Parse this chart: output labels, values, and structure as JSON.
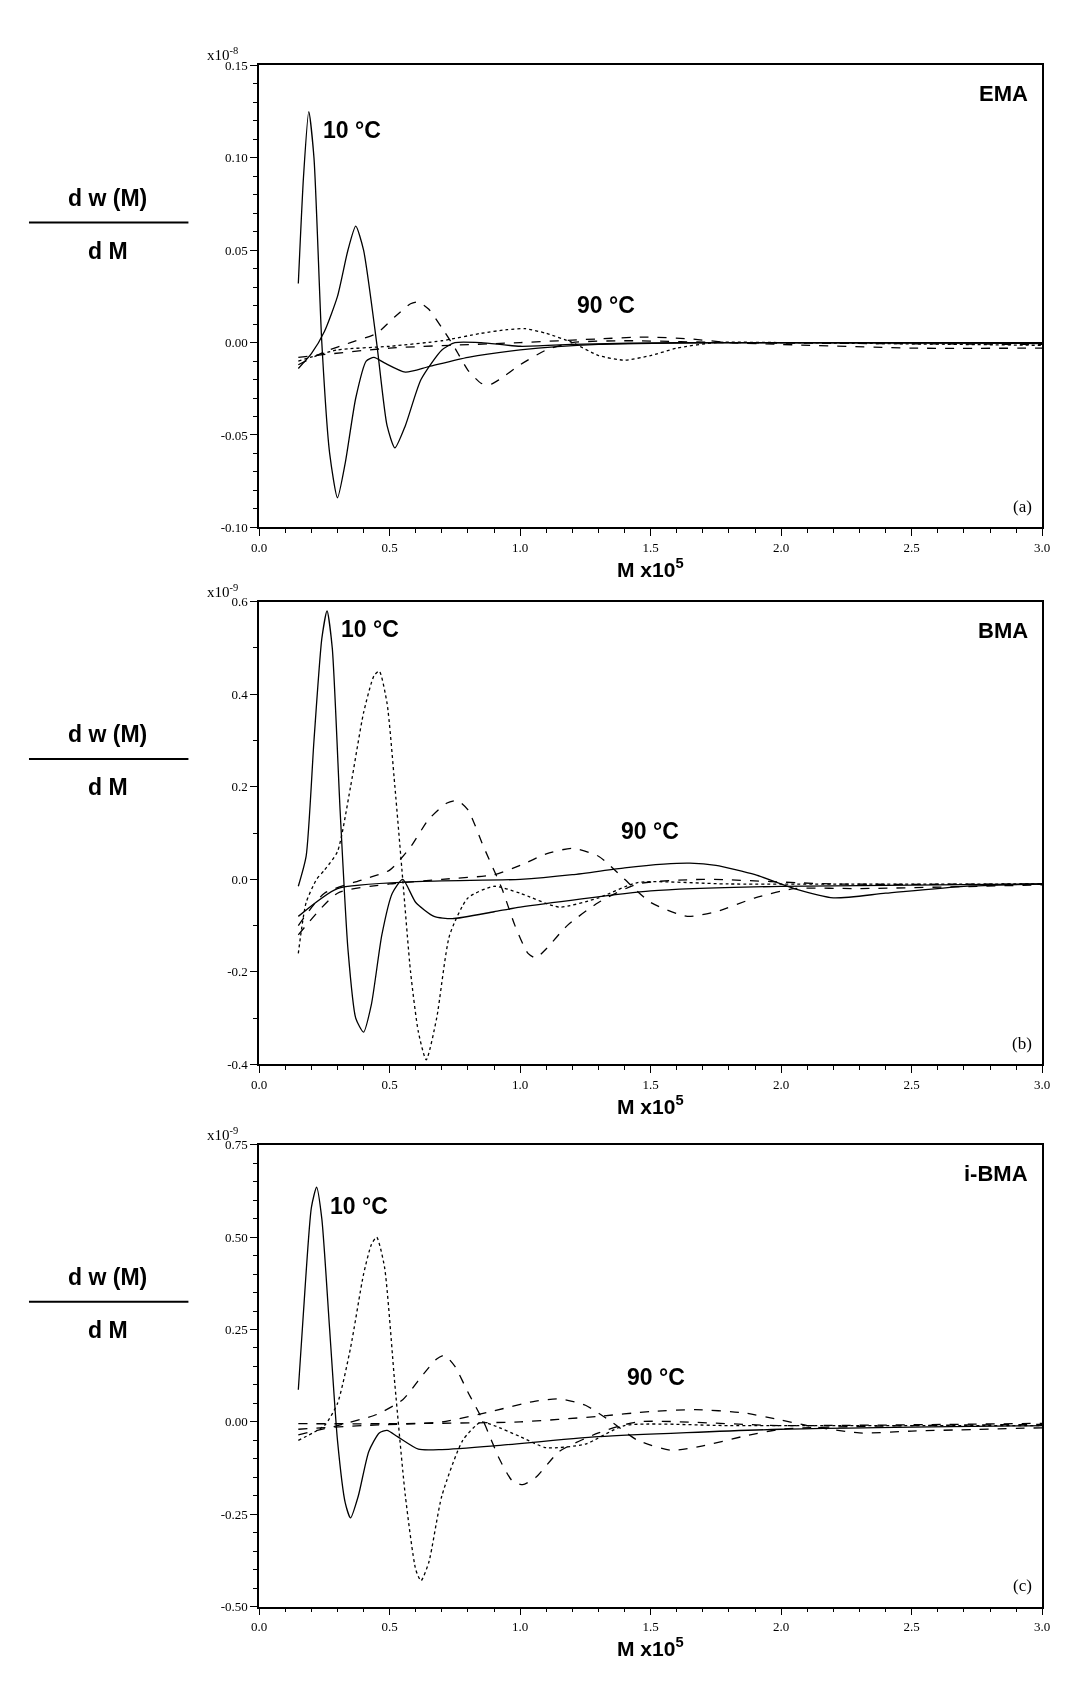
{
  "chart_data": [
    {
      "type": "line",
      "title": "EMA",
      "xlabel": "M x10$^{5}$",
      "ylabel": "d w (M)\nd M",
      "xlim": [
        0,
        3
      ],
      "ylim": [
        -0.1,
        0.15
      ],
      "xticks": [
        {
          "value": 0,
          "label": "0.0"
        },
        {
          "value": 0.5,
          "label": "0.5"
        },
        {
          "value": 1,
          "label": "1.0"
        },
        {
          "value": 1.5,
          "label": "1.5"
        },
        {
          "value": 2,
          "label": "2.0"
        },
        {
          "value": 2.5,
          "label": "2.5"
        },
        {
          "value": 3,
          "label": "3.0"
        }
      ],
      "yticks": [
        {
          "value": -0.1,
          "label": "-0.10"
        },
        {
          "value": -0.05,
          "label": "-0.05"
        },
        {
          "value": 0,
          "label": "0.00"
        },
        {
          "value": 0.05,
          "label": "0.05"
        },
        {
          "value": 0.1,
          "label": "0.10"
        },
        {
          "value": 0.15,
          "label": "0.15"
        }
      ],
      "annotations": [
        "x10$^{-8}$",
        "(a)",
        "10 °C",
        "90 °C"
      ],
      "series": [
        {
          "color": "#000000",
          "line_style": "solid",
          "x": [
            0.15,
            0.17,
            0.19,
            0.21,
            0.24,
            0.27,
            0.3,
            0.33,
            0.37,
            0.41,
            0.44,
            0.48,
            0.56,
            0.65,
            0.8,
            1.0,
            1.3,
            1.8,
            3.0
          ],
          "values": [
            0.032,
            0.09,
            0.125,
            0.1,
            0.0,
            -0.06,
            -0.084,
            -0.065,
            -0.03,
            -0.01,
            -0.008,
            -0.011,
            -0.016,
            -0.013,
            -0.008,
            -0.004,
            -0.001,
            0.0,
            0.0
          ]
        },
        {
          "color": "#000000",
          "line_style": "solid",
          "x": [
            0.15,
            0.2,
            0.25,
            0.3,
            0.34,
            0.37,
            0.4,
            0.45,
            0.49,
            0.52,
            0.56,
            0.62,
            0.7,
            0.75,
            0.85,
            1.0,
            1.2,
            1.6,
            3.0
          ],
          "values": [
            -0.014,
            -0.006,
            0.006,
            0.025,
            0.05,
            0.063,
            0.05,
            0.0,
            -0.045,
            -0.057,
            -0.045,
            -0.02,
            -0.004,
            0.0,
            0.0,
            -0.002,
            -0.001,
            0.0,
            -0.0005
          ]
        },
        {
          "color": "#000000",
          "line_style": "dashed",
          "x": [
            0.15,
            0.25,
            0.35,
            0.45,
            0.52,
            0.58,
            0.61,
            0.65,
            0.7,
            0.75,
            0.8,
            0.85,
            0.88,
            0.92,
            1.0,
            1.1,
            1.2,
            1.4,
            1.8,
            3.0
          ],
          "values": [
            -0.012,
            -0.005,
            0.0,
            0.005,
            0.014,
            0.021,
            0.022,
            0.018,
            0.008,
            -0.003,
            -0.015,
            -0.022,
            -0.023,
            -0.02,
            -0.012,
            -0.004,
            0.0,
            0.001,
            0.0,
            -0.001
          ]
        },
        {
          "color": "#000000",
          "line_style": "dotted",
          "x": [
            0.15,
            0.3,
            0.5,
            0.7,
            0.85,
            0.95,
            1.02,
            1.1,
            1.2,
            1.3,
            1.4,
            1.5,
            1.6,
            1.75,
            2.0,
            3.0
          ],
          "values": [
            -0.01,
            -0.004,
            -0.002,
            0.001,
            0.005,
            0.007,
            0.0075,
            0.005,
            0.0,
            -0.007,
            -0.0095,
            -0.007,
            -0.003,
            0.0,
            0.0,
            -0.0015
          ]
        },
        {
          "color": "#000000",
          "line_style": "dashed",
          "x": [
            0.15,
            0.5,
            1.0,
            1.3,
            1.48,
            1.65,
            1.8,
            2.0,
            2.5,
            3.0
          ],
          "values": [
            -0.008,
            -0.003,
            0.0,
            0.002,
            0.003,
            0.002,
            0.0,
            -0.001,
            -0.003,
            -0.003
          ]
        }
      ]
    },
    {
      "type": "line",
      "title": "BMA",
      "xlabel": "M x10$^{5}$",
      "ylabel": "d w (M)\nd M",
      "xlim": [
        0,
        3
      ],
      "ylim": [
        -0.4,
        0.6
      ],
      "xticks": [
        {
          "value": 0,
          "label": "0.0"
        },
        {
          "value": 0.5,
          "label": "0.5"
        },
        {
          "value": 1,
          "label": "1.0"
        },
        {
          "value": 1.5,
          "label": "1.5"
        },
        {
          "value": 2,
          "label": "2.0"
        },
        {
          "value": 2.5,
          "label": "2.5"
        },
        {
          "value": 3,
          "label": "3.0"
        }
      ],
      "yticks": [
        {
          "value": -0.4,
          "label": "-0.4"
        },
        {
          "value": -0.2,
          "label": "-0.2"
        },
        {
          "value": 0,
          "label": "0.0"
        },
        0.2,
        0.4,
        0.6
      ],
      "annotations": [
        "x10$^{-9}$",
        "(b)",
        "10 °C",
        "90 °C"
      ],
      "series": [
        {
          "color": "#000000",
          "line_style": "solid",
          "x": [
            0.15,
            0.18,
            0.21,
            0.24,
            0.26,
            0.28,
            0.31,
            0.34,
            0.37,
            0.4,
            0.43,
            0.47,
            0.51,
            0.55,
            0.6,
            0.67,
            0.74,
            0.9,
            1.0,
            1.5,
            2.0,
            3.0
          ],
          "values": [
            -0.015,
            0.05,
            0.3,
            0.52,
            0.58,
            0.5,
            0.15,
            -0.15,
            -0.3,
            -0.33,
            -0.27,
            -0.12,
            -0.03,
            0.0,
            -0.05,
            -0.08,
            -0.085,
            -0.07,
            -0.06,
            -0.025,
            -0.015,
            -0.01
          ]
        },
        {
          "color": "#000000",
          "line_style": "dotted",
          "x": [
            0.15,
            0.18,
            0.22,
            0.25,
            0.3,
            0.35,
            0.4,
            0.44,
            0.46,
            0.49,
            0.52,
            0.55,
            0.58,
            0.61,
            0.64,
            0.68,
            0.73,
            0.8,
            0.9,
            1.0,
            1.15,
            1.3,
            1.45,
            1.8,
            3.0
          ],
          "values": [
            -0.16,
            -0.05,
            0.0,
            0.02,
            0.06,
            0.2,
            0.36,
            0.44,
            0.45,
            0.38,
            0.2,
            0.0,
            -0.2,
            -0.33,
            -0.39,
            -0.3,
            -0.12,
            -0.04,
            -0.015,
            -0.03,
            -0.06,
            -0.04,
            -0.007,
            -0.01,
            -0.01
          ]
        },
        {
          "color": "#000000",
          "line_style": "dashed",
          "x": [
            0.15,
            0.25,
            0.4,
            0.5,
            0.58,
            0.65,
            0.72,
            0.76,
            0.8,
            0.86,
            0.93,
            0.98,
            1.03,
            1.06,
            1.1,
            1.18,
            1.3,
            1.45,
            1.7,
            2.2,
            3.0
          ],
          "values": [
            -0.1,
            -0.03,
            0.0,
            0.02,
            0.07,
            0.13,
            0.165,
            0.17,
            0.15,
            0.07,
            -0.02,
            -0.1,
            -0.16,
            -0.17,
            -0.15,
            -0.1,
            -0.05,
            -0.01,
            0.0,
            -0.01,
            -0.01
          ]
        },
        {
          "color": "#000000",
          "line_style": "dashed",
          "x": [
            0.15,
            0.3,
            0.5,
            0.7,
            0.9,
            1.0,
            1.1,
            1.2,
            1.3,
            1.4,
            1.5,
            1.64,
            1.75,
            1.9,
            2.05,
            2.3,
            3.0
          ],
          "values": [
            -0.12,
            -0.03,
            -0.01,
            0.0,
            0.01,
            0.03,
            0.055,
            0.067,
            0.05,
            0.0,
            -0.05,
            -0.08,
            -0.07,
            -0.04,
            -0.02,
            -0.02,
            -0.012
          ]
        },
        {
          "color": "#000000",
          "line_style": "solid",
          "x": [
            0.15,
            0.3,
            0.6,
            1.0,
            1.2,
            1.4,
            1.55,
            1.65,
            1.75,
            1.9,
            2.05,
            2.2,
            2.4,
            2.7,
            3.0
          ],
          "values": [
            -0.08,
            -0.02,
            -0.005,
            0.0,
            0.01,
            0.025,
            0.033,
            0.035,
            0.03,
            0.01,
            -0.02,
            -0.04,
            -0.03,
            -0.015,
            -0.01
          ]
        }
      ]
    },
    {
      "type": "line",
      "title": "i-BMA",
      "xlabel": "M x10$^{5}$",
      "ylabel": "d w (M)\nd M",
      "xlim": [
        0,
        3
      ],
      "ylim": [
        -0.5,
        0.75
      ],
      "xticks": [
        {
          "value": 0,
          "label": "0.0"
        },
        {
          "value": 0.5,
          "label": "0.5"
        },
        {
          "value": 1,
          "label": "1.0"
        },
        {
          "value": 1.5,
          "label": "1.5"
        },
        {
          "value": 2,
          "label": "2.0"
        },
        {
          "value": 2.5,
          "label": "2.5"
        },
        {
          "value": 3,
          "label": "3.0"
        }
      ],
      "yticks": [
        {
          "value": -0.5,
          "label": "-0.50"
        },
        {
          "value": -0.25,
          "label": "-0.25"
        },
        {
          "value": 0,
          "label": "0.00"
        },
        0.25,
        {
          "value": 0.5,
          "label": "0.50"
        },
        0.75
      ],
      "annotations": [
        "x10$^{-9}$",
        "(c)",
        "10 °C",
        "90 °C"
      ],
      "series": [
        {
          "color": "#000000",
          "line_style": "solid",
          "x": [
            0.15,
            0.17,
            0.2,
            0.22,
            0.24,
            0.27,
            0.3,
            0.33,
            0.35,
            0.38,
            0.42,
            0.46,
            0.49,
            0.53,
            0.61,
            0.7,
            0.9,
            1.3,
            2.0,
            3.0
          ],
          "values": [
            0.087,
            0.3,
            0.58,
            0.635,
            0.55,
            0.25,
            -0.05,
            -0.22,
            -0.26,
            -0.2,
            -0.08,
            -0.03,
            -0.023,
            -0.04,
            -0.074,
            -0.075,
            -0.065,
            -0.04,
            -0.02,
            -0.01
          ]
        },
        {
          "color": "#000000",
          "line_style": "dotted",
          "x": [
            0.15,
            0.25,
            0.3,
            0.35,
            0.4,
            0.43,
            0.45,
            0.48,
            0.52,
            0.56,
            0.6,
            0.62,
            0.65,
            0.7,
            0.78,
            0.85,
            0.9,
            1.0,
            1.1,
            1.25,
            1.4,
            1.8,
            3.0
          ],
          "values": [
            -0.05,
            -0.01,
            0.05,
            0.2,
            0.4,
            0.48,
            0.5,
            0.42,
            0.1,
            -0.2,
            -0.4,
            -0.43,
            -0.38,
            -0.2,
            -0.05,
            0.0,
            -0.01,
            -0.04,
            -0.07,
            -0.06,
            -0.01,
            -0.01,
            -0.01
          ]
        },
        {
          "color": "#000000",
          "line_style": "dashed",
          "x": [
            0.15,
            0.3,
            0.45,
            0.55,
            0.63,
            0.68,
            0.71,
            0.75,
            0.8,
            0.86,
            0.92,
            0.97,
            1.01,
            1.06,
            1.15,
            1.3,
            1.45,
            2.0,
            3.0
          ],
          "values": [
            -0.035,
            -0.01,
            0.02,
            0.06,
            0.13,
            0.17,
            0.18,
            0.15,
            0.08,
            0.0,
            -0.1,
            -0.16,
            -0.17,
            -0.15,
            -0.08,
            -0.03,
            0.0,
            -0.01,
            -0.004
          ]
        },
        {
          "color": "#000000",
          "line_style": "dashed",
          "x": [
            0.15,
            0.4,
            0.7,
            0.9,
            1.05,
            1.15,
            1.25,
            1.35,
            1.45,
            1.58,
            1.7,
            1.85,
            2.0,
            2.5,
            3.0
          ],
          "values": [
            -0.02,
            -0.01,
            0.0,
            0.03,
            0.055,
            0.062,
            0.045,
            0.0,
            -0.05,
            -0.077,
            -0.065,
            -0.04,
            -0.02,
            -0.01,
            -0.007
          ]
        },
        {
          "color": "#000000",
          "line_style": "dashed",
          "x": [
            0.15,
            0.5,
            1.0,
            1.3,
            1.5,
            1.67,
            1.85,
            2.0,
            2.1,
            2.3,
            2.5,
            3.0
          ],
          "values": [
            -0.005,
            -0.005,
            0.0,
            0.015,
            0.028,
            0.033,
            0.025,
            0.005,
            -0.01,
            -0.03,
            -0.025,
            -0.016
          ]
        }
      ]
    }
  ]
}
